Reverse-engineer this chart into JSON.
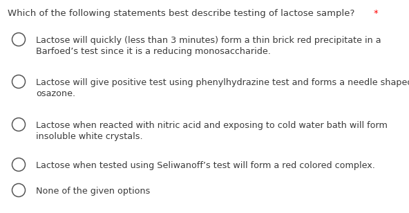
{
  "title": "Which of the following statements best describe testing of lactose sample?",
  "title_asterisk": " *",
  "background_color": "#ffffff",
  "text_color": "#3a3a3a",
  "circle_color": "#555555",
  "title_fontsize": 9.5,
  "option_fontsize": 9.2,
  "options": [
    {
      "lines": [
        "Lactose will quickly (less than 3 minutes) form a thin brick red precipitate in a",
        "Barfoed’s test since it is a reducing monosaccharide."
      ]
    },
    {
      "lines": [
        "Lactose will give positive test using phenylhydrazine test and forms a needle shaped",
        "osazone."
      ]
    },
    {
      "lines": [
        "Lactose when reacted with nitric acid and exposing to cold water bath will form",
        "insoluble white crystals."
      ]
    },
    {
      "lines": [
        "Lactose when tested using Seliwanoff’s test will form a red colored complex."
      ]
    },
    {
      "lines": [
        "None of the given options"
      ]
    }
  ],
  "fig_width": 5.92,
  "fig_height": 3.08,
  "dpi": 100
}
